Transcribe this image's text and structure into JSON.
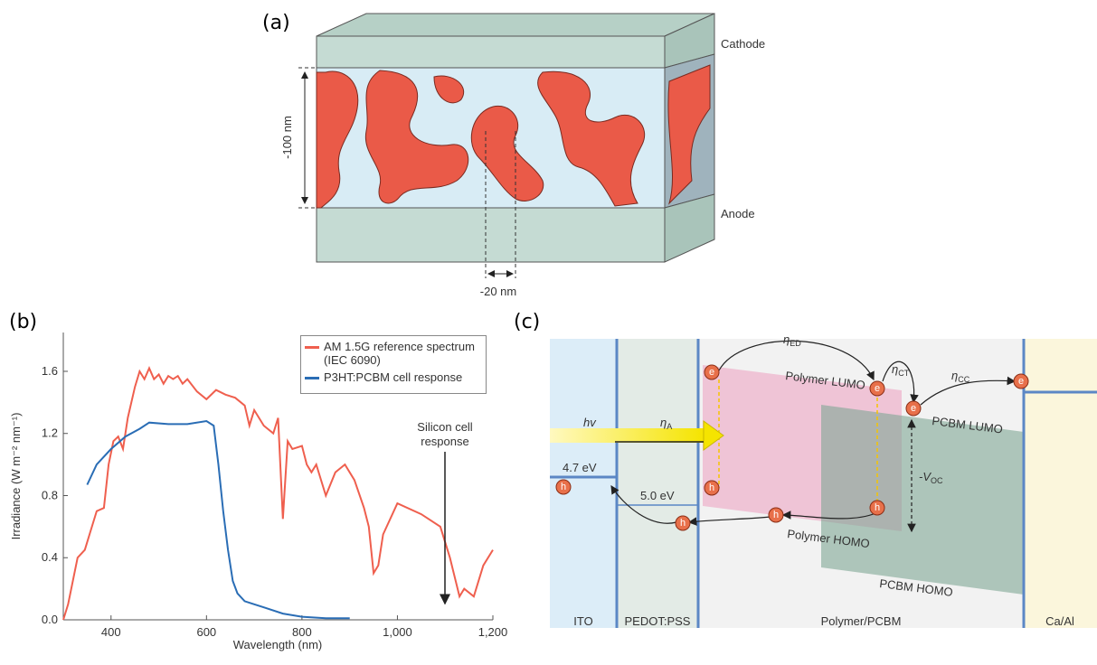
{
  "panel_a": {
    "label": "(a)",
    "cathode": "Cathode",
    "anode": "Anode",
    "thickness": "-100 nm",
    "domain_size": "-20 nm"
  },
  "chart_data": {
    "type": "line",
    "panel_label": "(b)",
    "xlabel": "Wavelength (nm)",
    "ylabel": "Irradiance (W m⁻² nm⁻¹)",
    "xlim": [
      300,
      1200
    ],
    "ylim": [
      0,
      1.85
    ],
    "xticks": [
      400,
      600,
      800,
      {
        "value": 1000,
        "label": "1,000"
      },
      {
        "value": 1200,
        "label": "1,200"
      }
    ],
    "yticks": [
      {
        "value": 0,
        "label": "0.0"
      },
      0.4,
      0.8,
      1.2,
      1.6
    ],
    "legend": "upper right",
    "annotation": "Silicon cell response",
    "series": [
      {
        "name": "AM 1.5G reference spectrum (IEC 6090)",
        "color": "#ef5f4e",
        "x": [
          300,
          310,
          330,
          345,
          355,
          370,
          385,
          395,
          405,
          415,
          425,
          435,
          450,
          460,
          470,
          480,
          490,
          500,
          510,
          520,
          530,
          540,
          550,
          560,
          580,
          600,
          620,
          640,
          660,
          680,
          690,
          700,
          720,
          740,
          750,
          760,
          770,
          780,
          800,
          810,
          820,
          830,
          850,
          870,
          890,
          910,
          930,
          940,
          950,
          960,
          970,
          1000,
          1050,
          1090,
          1110,
          1130,
          1140,
          1160,
          1180,
          1200
        ],
        "values": [
          0,
          0.1,
          0.4,
          0.45,
          0.55,
          0.7,
          0.72,
          1.0,
          1.15,
          1.18,
          1.1,
          1.3,
          1.5,
          1.6,
          1.55,
          1.62,
          1.55,
          1.58,
          1.52,
          1.57,
          1.55,
          1.57,
          1.52,
          1.55,
          1.47,
          1.42,
          1.48,
          1.45,
          1.43,
          1.38,
          1.25,
          1.35,
          1.25,
          1.2,
          1.3,
          0.65,
          1.15,
          1.1,
          1.12,
          1.0,
          0.95,
          1.0,
          0.8,
          0.95,
          1.0,
          0.9,
          0.72,
          0.6,
          0.3,
          0.35,
          0.55,
          0.75,
          0.68,
          0.6,
          0.4,
          0.15,
          0.2,
          0.15,
          0.35,
          0.45
        ]
      },
      {
        "name": "P3HT:PCBM cell response",
        "color": "#2a6db5",
        "x": [
          350,
          370,
          400,
          430,
          460,
          480,
          520,
          560,
          600,
          615,
          625,
          635,
          645,
          655,
          665,
          680,
          700,
          720,
          760,
          800,
          850,
          900
        ],
        "values": [
          0.87,
          1.0,
          1.1,
          1.18,
          1.23,
          1.27,
          1.26,
          1.26,
          1.28,
          1.25,
          1.0,
          0.7,
          0.45,
          0.25,
          0.17,
          0.12,
          0.1,
          0.08,
          0.04,
          0.02,
          0.01,
          0.01
        ]
      }
    ]
  },
  "panel_c": {
    "label": "(c)",
    "layers": [
      "ITO",
      "PEDOT:PSS",
      "Polymer/PCBM",
      "Ca/Al"
    ],
    "polymer_lumo": "Polymer LUMO",
    "polymer_homo": "Polymer HOMO",
    "pcbm_lumo": "PCBM LUMO",
    "pcbm_homo": "PCBM HOMO",
    "ito_level": "4.7 eV",
    "pedot_level": "5.0 eV",
    "photon": "hv",
    "eta_a": {
      "symbol": "η",
      "sub": "A"
    },
    "eta_ed": {
      "symbol": "η",
      "sub": "ED"
    },
    "eta_ct": {
      "symbol": "η",
      "sub": "CT"
    },
    "eta_cc": {
      "symbol": "η",
      "sub": "CC"
    },
    "voc": {
      "symbol": "-V",
      "sub": "OC"
    },
    "electron": "e",
    "hole": "h"
  }
}
